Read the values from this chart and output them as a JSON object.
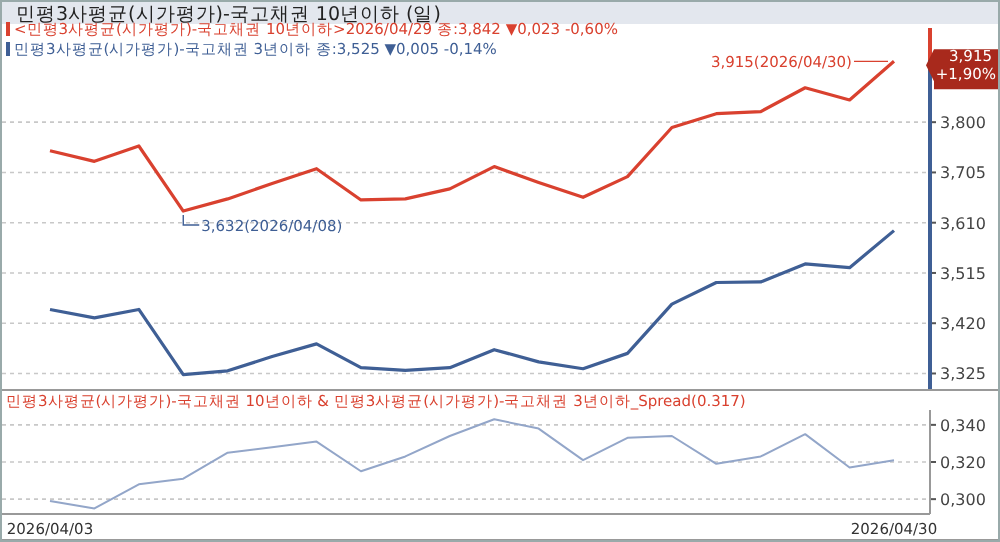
{
  "chart_data": [
    {
      "type": "line",
      "title": "민평3사평균(시가평가)-국고채권 10년이하 (일)",
      "categories": [
        "2026/04/03",
        null,
        null,
        null,
        null,
        null,
        null,
        null,
        null,
        null,
        null,
        null,
        null,
        null,
        null,
        null,
        null,
        null,
        null,
        "2026/04/30"
      ],
      "series": [
        {
          "name": "<민평3사평균(시가평가)-국고채권 10년이하>2026/04/29 종:3,842  ▼0,023  -0,60%",
          "color": "#d9412f",
          "values": [
            3.746,
            3.726,
            3.755,
            3.632,
            3.655,
            3.684,
            3.712,
            3.653,
            3.655,
            3.674,
            3.716,
            3.686,
            3.658,
            3.697,
            3.79,
            3.816,
            3.82,
            3.865,
            3.842,
            3.915
          ]
        },
        {
          "name": "민평3사평균(시가평가)-국고채권 3년이하 종:3,525  ▼0,005  -0,14%",
          "color": "#3f5f95",
          "values": [
            3.446,
            3.43,
            3.446,
            3.323,
            3.33,
            3.357,
            3.381,
            3.336,
            3.331,
            3.336,
            3.37,
            3.347,
            3.334,
            3.363,
            3.456,
            3.497,
            3.498,
            3.532,
            3.525,
            3.595
          ]
        }
      ],
      "ylim": [
        3.29,
        3.978
      ],
      "yticks": [
        {
          "value": 3.325,
          "label": "3,325"
        },
        {
          "value": 3.42,
          "label": "3,420"
        },
        {
          "value": 3.515,
          "label": "3,515"
        },
        {
          "value": 3.61,
          "label": "3,610"
        },
        {
          "value": 3.705,
          "label": "3,705"
        },
        {
          "value": 3.8,
          "label": "3,800"
        }
      ],
      "grid": "y",
      "legend": "top left",
      "tick_labels": "y",
      "annotations": [
        "3,632(2026/04/08)",
        {
          "text": "3,915(2026/04/30)",
          "x": "2026/04/30",
          "y": 3.915
        },
        "3,915",
        "+1,90%"
      ]
    },
    {
      "type": "line",
      "title": "민평3사평균(시가평가)-국고채권 10년이하 & 민평3사평균(시가평가)-국고채권 3년이하_Spread(0.317)",
      "categories": [
        "2026/04/03",
        null,
        null,
        null,
        null,
        null,
        null,
        null,
        null,
        null,
        null,
        null,
        null,
        null,
        null,
        null,
        null,
        null,
        null,
        "2026/04/30"
      ],
      "series": [
        {
          "color": "#93a6c9",
          "values": [
            0.299,
            0.295,
            0.308,
            0.311,
            0.325,
            0.328,
            0.331,
            0.315,
            0.323,
            0.334,
            0.343,
            0.338,
            0.321,
            0.333,
            0.334,
            0.319,
            0.323,
            0.335,
            0.317,
            0.321
          ]
        }
      ],
      "ylim": [
        0.292,
        0.348
      ],
      "yticks": [
        {
          "value": 0.3,
          "label": "0,300"
        },
        {
          "value": 0.32,
          "label": "0,320"
        },
        {
          "value": 0.34,
          "label": "0,340"
        }
      ],
      "grid": "y"
    }
  ]
}
